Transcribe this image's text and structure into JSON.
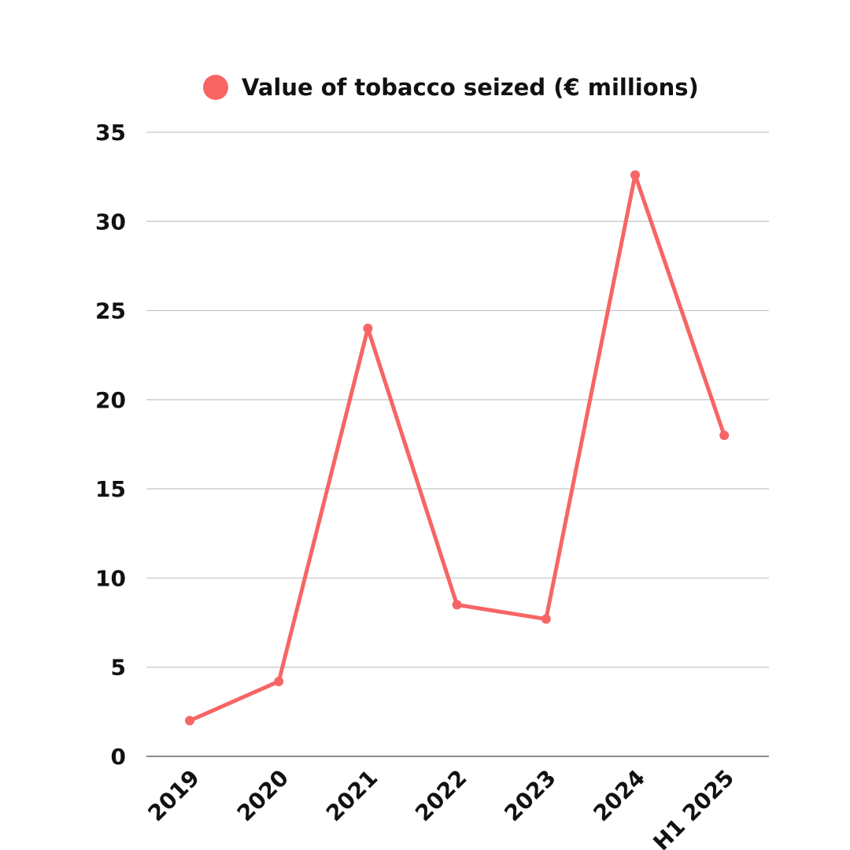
{
  "chart_data": {
    "type": "line",
    "categories": [
      "2019",
      "2020",
      "2021",
      "2022",
      "2023",
      "2024",
      "H1 2025"
    ],
    "series": [
      {
        "name": "Value of tobacco seized (€ millions)",
        "values": [
          2.0,
          4.2,
          24.0,
          8.5,
          7.7,
          32.6,
          18.0
        ],
        "color": "#f76565"
      }
    ],
    "ylim": [
      0,
      35
    ],
    "yticks": [
      "0",
      "5",
      "10",
      "15",
      "20",
      "25",
      "30",
      "35"
    ],
    "grid": true,
    "legend_position": "top-center"
  }
}
